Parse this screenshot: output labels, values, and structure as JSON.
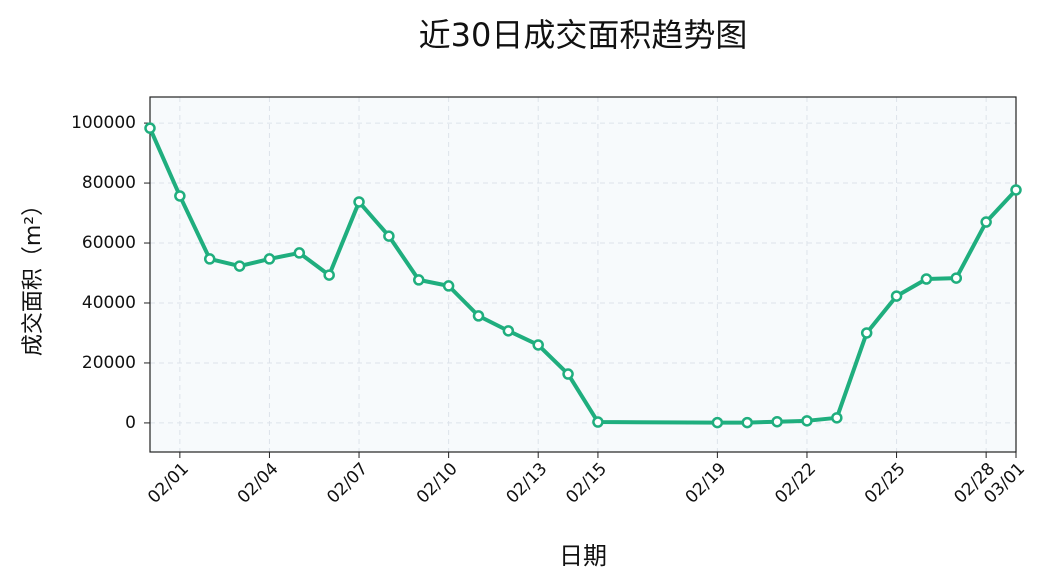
{
  "chart_data": {
    "type": "line",
    "title": "近30日成交面积趋势图",
    "x_label": "日期",
    "y_label": "成交面积（m²）",
    "x": [
      "01/31",
      "02/01",
      "02/02",
      "02/03",
      "02/04",
      "02/05",
      "02/06",
      "02/07",
      "02/08",
      "02/09",
      "02/10",
      "02/11",
      "02/12",
      "02/13",
      "02/14",
      "02/15",
      "02/19",
      "02/20",
      "02/21",
      "02/22",
      "02/23",
      "02/24",
      "02/25",
      "02/26",
      "02/27",
      "02/28",
      "03/01"
    ],
    "values": [
      98300,
      75700,
      54700,
      52300,
      54700,
      56700,
      49300,
      73700,
      62300,
      47700,
      45700,
      35700,
      30700,
      26000,
      16300,
      300,
      100,
      100,
      400,
      700,
      1700,
      30000,
      42300,
      48000,
      48300,
      67000,
      77700
    ],
    "color": "#1fae7e",
    "xlim": [
      "01/31",
      "03/01"
    ],
    "xticks": [
      "02/01",
      "02/04",
      "02/07",
      "02/10",
      "02/13",
      "02/15",
      "02/19",
      "02/22",
      "02/25",
      "02/28",
      "03/01"
    ],
    "ylim": [
      -9700,
      108700
    ],
    "yticks": [
      0,
      20000,
      40000,
      60000,
      80000,
      100000
    ],
    "grid": true
  }
}
